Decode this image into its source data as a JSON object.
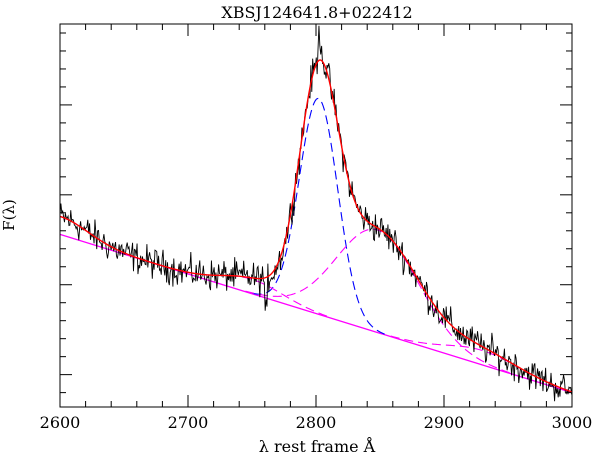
{
  "chart_data": {
    "type": "line",
    "title": "XBSJ124641.8+022412",
    "xlabel": "λ rest frame Å",
    "ylabel": "F(λ)",
    "xlim": [
      2600,
      3000
    ],
    "x_ticks": [
      "2600",
      "2700",
      "2800",
      "2900",
      "3000"
    ],
    "y_ticks_labeled": false,
    "y_ticks_count": 5,
    "grid": false,
    "legend": "none",
    "continuum": {
      "x": [
        2600,
        3000
      ],
      "y": [
        0.78,
        -0.1
      ],
      "color": "#ff00ff"
    },
    "components": [
      {
        "shape": "gaussian",
        "center": 2802,
        "sigma": 15,
        "amplitude": 1.2,
        "color": "#0000ff",
        "style": "dashed"
      },
      {
        "shape": "gaussian",
        "center": 2848,
        "sigma": 32,
        "amplitude": 0.57,
        "color": "#ff00ff",
        "style": "dashed"
      },
      {
        "shape": "gaussian",
        "center": 2750,
        "sigma": 24,
        "amplitude": 0.08,
        "color": "#ff00ff",
        "style": "dashed"
      },
      {
        "shape": "gaussian",
        "center": 2600,
        "sigma": 22,
        "amplitude": 0.1,
        "color": "#ff00ff",
        "style": "dashed"
      },
      {
        "shape": "gaussian",
        "center": 2930,
        "sigma": 28,
        "amplitude": 0.08,
        "color": "#ff00ff",
        "style": "dashed"
      }
    ],
    "model_color": "#ff0000",
    "data_color": "#000000",
    "noise_amplitude": 0.075
  },
  "colors": {
    "axis": "#000000",
    "blue_component": "#0000ff",
    "magenta_component": "#ff00ff",
    "total_model": "#ff0000",
    "observed": "#000000"
  }
}
